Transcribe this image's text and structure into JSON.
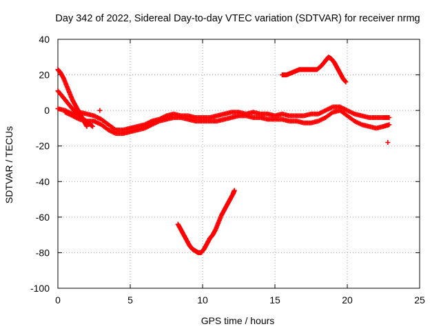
{
  "chart_data": {
    "type": "scatter",
    "title": "Day 342 of 2022, Sidereal Day-to-day VTEC variation (SDTVAR) for receiver nrmg",
    "xlabel": "GPS time / hours",
    "ylabel": "SDTVAR / TECUs",
    "xlim": [
      0,
      25
    ],
    "ylim": [
      -100,
      40
    ],
    "xticks": [
      0,
      5,
      10,
      15,
      20,
      25
    ],
    "yticks": [
      -100,
      -80,
      -60,
      -40,
      -20,
      0,
      20,
      40
    ],
    "grid": true,
    "marker": "+",
    "color": "#ff0000",
    "series": [
      {
        "name": "main-band-upper",
        "x": [
          0.0,
          0.5,
          1.0,
          1.5,
          2.0,
          2.5,
          3.0,
          3.5,
          4.0,
          4.5,
          5.0,
          5.5,
          6.0,
          6.5,
          7.0,
          7.5,
          8.0,
          8.5,
          9.0,
          9.5,
          10.0,
          10.5,
          11.0,
          11.5,
          12.0,
          12.5,
          13.0,
          13.5,
          14.0,
          14.5,
          15.0,
          15.5,
          16.0,
          16.5,
          17.0,
          17.5,
          18.0,
          18.5,
          19.0,
          19.5,
          20.0,
          20.5,
          21.0,
          21.5,
          22.0,
          22.5,
          22.9
        ],
        "y": [
          1,
          0,
          -2,
          -1,
          -2,
          -3,
          -5,
          -8,
          -11,
          -11,
          -10,
          -9,
          -8,
          -6,
          -5,
          -3,
          -2,
          -3,
          -3,
          -4,
          -4,
          -4,
          -3,
          -2,
          -1,
          -1,
          -2,
          -1,
          -2,
          -2,
          -3,
          -2,
          -3,
          -3,
          -3,
          -2,
          -2,
          0,
          2,
          2,
          0,
          -2,
          -3,
          -4,
          -4,
          -4,
          -4
        ]
      },
      {
        "name": "main-band-lower",
        "x": [
          0.5,
          1.0,
          1.5,
          2.0,
          2.5,
          3.0,
          3.5,
          4.0,
          4.5,
          5.0,
          5.5,
          6.0,
          6.5,
          7.0,
          7.5,
          8.0,
          8.5,
          9.0,
          9.5,
          10.0,
          10.5,
          11.0,
          11.5,
          12.0,
          12.5,
          13.0,
          13.5,
          14.0,
          14.5,
          15.0,
          15.5,
          16.0,
          16.5,
          17.0,
          17.5,
          18.0,
          18.5,
          19.0,
          19.5,
          20.0,
          20.5,
          21.0,
          21.5,
          22.0,
          22.5,
          22.9
        ],
        "y": [
          -1,
          -3,
          -5,
          -6,
          -6,
          -8,
          -11,
          -13,
          -13,
          -12,
          -11,
          -10,
          -8,
          -6,
          -5,
          -4,
          -4,
          -5,
          -6,
          -6,
          -6,
          -6,
          -5,
          -4,
          -3,
          -3,
          -4,
          -4,
          -5,
          -5,
          -5,
          -6,
          -6,
          -7,
          -7,
          -6,
          -4,
          -1,
          0,
          -3,
          -6,
          -8,
          -9,
          -10,
          -9,
          -8
        ]
      },
      {
        "name": "steep-decay-a",
        "x": [
          0.0,
          0.2,
          0.4,
          0.6,
          0.8,
          1.0,
          1.2,
          1.4,
          1.6,
          1.8,
          2.0
        ],
        "y": [
          23,
          21,
          18,
          14,
          10,
          6,
          3,
          0,
          -3,
          -6,
          -9
        ]
      },
      {
        "name": "steep-decay-b",
        "x": [
          0.0,
          0.3,
          0.6,
          0.9,
          1.2,
          1.5,
          1.8,
          2.1,
          2.4
        ],
        "y": [
          11,
          8,
          5,
          2,
          -1,
          -3,
          -5,
          -7,
          -9
        ]
      },
      {
        "name": "v-shaped-arc",
        "x": [
          8.3,
          8.5,
          8.7,
          8.9,
          9.1,
          9.3,
          9.5,
          9.7,
          9.9,
          10.1,
          10.3,
          10.5,
          10.7,
          10.9,
          11.1,
          11.3,
          11.5,
          11.7,
          11.9,
          12.1,
          12.2
        ],
        "y": [
          -64,
          -67,
          -70,
          -73,
          -76,
          -78,
          -79,
          -80,
          -80,
          -78,
          -75,
          -72,
          -70,
          -67,
          -63,
          -59,
          -56,
          -53,
          -50,
          -47,
          -45
        ]
      },
      {
        "name": "upper-arc",
        "x": [
          15.5,
          15.8,
          16.1,
          16.4,
          16.7,
          17.0,
          17.3,
          17.6,
          17.9,
          18.2,
          18.5,
          18.7,
          18.9,
          19.1,
          19.3,
          19.5,
          19.7,
          19.9
        ],
        "y": [
          20,
          20,
          21,
          22,
          23,
          23,
          23,
          23,
          23,
          25,
          28,
          30,
          29,
          27,
          24,
          21,
          18,
          16
        ]
      },
      {
        "name": "isolated-points",
        "x": [
          2.9,
          22.8
        ],
        "y": [
          0,
          -18
        ]
      }
    ]
  }
}
